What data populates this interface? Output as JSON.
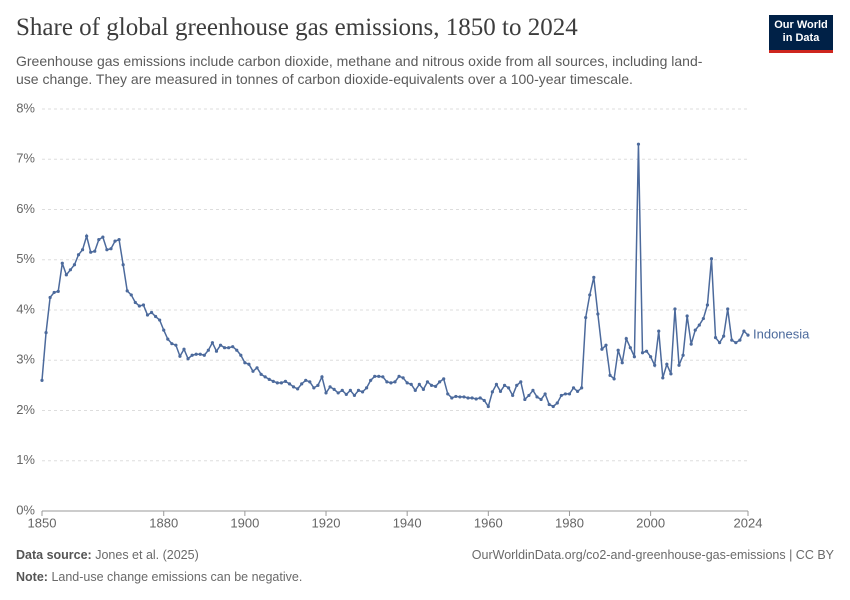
{
  "chart_data": {
    "type": "line",
    "title": "Share of global greenhouse gas emissions, 1850 to 2024",
    "subtitle": "Greenhouse gas emissions include carbon dioxide, methane and nitrous oxide from all sources, including land-use change. They are measured in tonnes of carbon dioxide-equivalents over a 100-year timescale.",
    "logo": [
      "Our World",
      "in Data"
    ],
    "source_label": "Data source:",
    "source": "Jones et al. (2025)",
    "url": "OurWorldinData.org/co2-and-greenhouse-gas-emissions | CC BY",
    "note_label": "Note:",
    "note": "Land-use change emissions can be negative.",
    "xlim": [
      1850,
      2024
    ],
    "xticks": [
      1850,
      1880,
      1900,
      1920,
      1940,
      1960,
      1980,
      2000,
      2024
    ],
    "ylim": [
      0,
      8
    ],
    "yticks": [
      {
        "value": 0,
        "label": "0%"
      },
      {
        "value": 1,
        "label": "1%"
      },
      {
        "value": 2,
        "label": "2%"
      },
      {
        "value": 3,
        "label": "3%"
      },
      {
        "value": 4,
        "label": "4%"
      },
      {
        "value": 5,
        "label": "5%"
      },
      {
        "value": 6,
        "label": "6%"
      },
      {
        "value": 7,
        "label": "7%"
      },
      {
        "value": 8,
        "label": "8%"
      }
    ],
    "grid": true,
    "x": [
      1850,
      1851,
      1852,
      1853,
      1854,
      1855,
      1856,
      1857,
      1858,
      1859,
      1860,
      1861,
      1862,
      1863,
      1864,
      1865,
      1866,
      1867,
      1868,
      1869,
      1870,
      1871,
      1872,
      1873,
      1874,
      1875,
      1876,
      1877,
      1878,
      1879,
      1880,
      1881,
      1882,
      1883,
      1884,
      1885,
      1886,
      1887,
      1888,
      1889,
      1890,
      1891,
      1892,
      1893,
      1894,
      1895,
      1896,
      1897,
      1898,
      1899,
      1900,
      1901,
      1902,
      1903,
      1904,
      1905,
      1906,
      1907,
      1908,
      1909,
      1910,
      1911,
      1912,
      1913,
      1914,
      1915,
      1916,
      1917,
      1918,
      1919,
      1920,
      1921,
      1922,
      1923,
      1924,
      1925,
      1926,
      1927,
      1928,
      1929,
      1930,
      1931,
      1932,
      1933,
      1934,
      1935,
      1936,
      1937,
      1938,
      1939,
      1940,
      1941,
      1942,
      1943,
      1944,
      1945,
      1946,
      1947,
      1948,
      1949,
      1950,
      1951,
      1952,
      1953,
      1954,
      1955,
      1956,
      1957,
      1958,
      1959,
      1960,
      1961,
      1962,
      1963,
      1964,
      1965,
      1966,
      1967,
      1968,
      1969,
      1970,
      1971,
      1972,
      1973,
      1974,
      1975,
      1976,
      1977,
      1978,
      1979,
      1980,
      1981,
      1982,
      1983,
      1984,
      1985,
      1986,
      1987,
      1988,
      1989,
      1990,
      1991,
      1992,
      1993,
      1994,
      1995,
      1996,
      1997,
      1998,
      1999,
      2000,
      2001,
      2002,
      2003,
      2004,
      2005,
      2006,
      2007,
      2008,
      2009,
      2010,
      2011,
      2012,
      2013,
      2014,
      2015,
      2016,
      2017,
      2018,
      2019,
      2020,
      2021,
      2022,
      2023,
      2024
    ],
    "series": [
      {
        "name": "Indonesia",
        "color": "#4c6a9c",
        "values": [
          2.6,
          3.55,
          4.25,
          4.35,
          4.37,
          4.93,
          4.7,
          4.8,
          4.9,
          5.1,
          5.2,
          5.47,
          5.15,
          5.17,
          5.4,
          5.45,
          5.2,
          5.22,
          5.37,
          5.4,
          4.9,
          4.38,
          4.3,
          4.15,
          4.08,
          4.1,
          3.9,
          3.95,
          3.87,
          3.8,
          3.6,
          3.42,
          3.33,
          3.3,
          3.08,
          3.22,
          3.03,
          3.1,
          3.12,
          3.12,
          3.1,
          3.2,
          3.35,
          3.18,
          3.3,
          3.25,
          3.25,
          3.27,
          3.2,
          3.1,
          2.95,
          2.92,
          2.78,
          2.85,
          2.72,
          2.67,
          2.62,
          2.58,
          2.55,
          2.55,
          2.58,
          2.53,
          2.47,
          2.43,
          2.53,
          2.6,
          2.57,
          2.45,
          2.5,
          2.67,
          2.35,
          2.47,
          2.42,
          2.35,
          2.4,
          2.32,
          2.4,
          2.3,
          2.4,
          2.37,
          2.45,
          2.6,
          2.68,
          2.68,
          2.67,
          2.57,
          2.55,
          2.57,
          2.68,
          2.65,
          2.55,
          2.52,
          2.4,
          2.52,
          2.42,
          2.57,
          2.5,
          2.48,
          2.57,
          2.63,
          2.33,
          2.25,
          2.28,
          2.27,
          2.27,
          2.25,
          2.25,
          2.23,
          2.25,
          2.2,
          2.08,
          2.37,
          2.52,
          2.38,
          2.5,
          2.45,
          2.3,
          2.5,
          2.57,
          2.22,
          2.3,
          2.4,
          2.27,
          2.22,
          2.33,
          2.12,
          2.08,
          2.15,
          2.3,
          2.33,
          2.33,
          2.45,
          2.38,
          2.45,
          3.85,
          4.3,
          4.65,
          3.92,
          3.22,
          3.3,
          2.7,
          2.63,
          3.2,
          2.95,
          3.43,
          3.25,
          3.07,
          7.3,
          3.15,
          3.18,
          3.07,
          2.9,
          3.58,
          2.65,
          2.92,
          2.73,
          4.02,
          2.9,
          3.1,
          3.88,
          3.32,
          3.6,
          3.7,
          3.83,
          4.1,
          5.02,
          3.45,
          3.35,
          3.48,
          4.02,
          3.4,
          3.35,
          3.4,
          3.58,
          3.5
        ]
      }
    ]
  }
}
